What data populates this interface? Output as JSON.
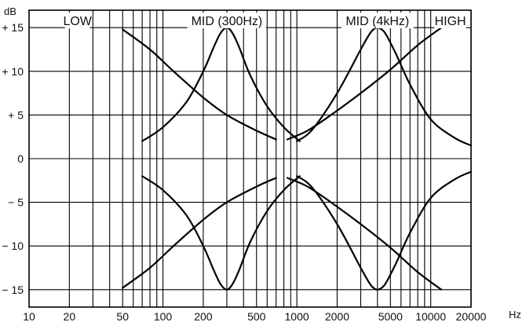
{
  "chart_data": {
    "type": "line",
    "x_scale": "log",
    "xlim": [
      10,
      20000
    ],
    "ylim": [
      -17,
      17
    ],
    "grid": true,
    "x_unit": "Hz",
    "y_unit": "dB",
    "x_ticks": [
      {
        "value": 10,
        "label": "10"
      },
      {
        "value": 20,
        "label": "20"
      },
      {
        "value": 50,
        "label": "50"
      },
      {
        "value": 100,
        "label": "100"
      },
      {
        "value": 200,
        "label": "200"
      },
      {
        "value": 500,
        "label": "500"
      },
      {
        "value": 1000,
        "label": "1000"
      },
      {
        "value": 2000,
        "label": "2000"
      },
      {
        "value": 5000,
        "label": "5000"
      },
      {
        "value": 10000,
        "label": "10000"
      },
      {
        "value": 20000,
        "label": "20000"
      }
    ],
    "y_ticks": [
      {
        "value": 15,
        "label": "+ 15"
      },
      {
        "value": 10,
        "label": "+ 10"
      },
      {
        "value": 5,
        "label": "+ 5"
      },
      {
        "value": 0,
        "label": "0"
      },
      {
        "value": -5,
        "label": "− 5"
      },
      {
        "value": -10,
        "label": "− 10"
      },
      {
        "value": -15,
        "label": "− 15"
      }
    ],
    "bands": [
      {
        "label": "LOW",
        "x": 23
      },
      {
        "label": "MID (300Hz)",
        "x": 300
      },
      {
        "label": "MID (4kHz)",
        "x": 4000
      },
      {
        "label": "HIGH",
        "x": 14000
      }
    ],
    "series": [
      {
        "x": [
          50,
          80,
          120,
          200,
          300,
          500,
          700
        ],
        "y": [
          14.8,
          12.5,
          10,
          7,
          5,
          3.2,
          2.2
        ]
      },
      {
        "x": [
          50,
          80,
          120,
          200,
          300,
          500,
          700
        ],
        "y": [
          -14.8,
          -12.5,
          -10,
          -7,
          -5,
          -3.2,
          -2.2
        ]
      },
      {
        "x": [
          70,
          100,
          150,
          200,
          240,
          270,
          300,
          330,
          370,
          450,
          600,
          800,
          1050
        ],
        "y": [
          2,
          3.6,
          6.5,
          10,
          12.8,
          14.4,
          15,
          14.4,
          12.8,
          9.5,
          6,
          3.6,
          2
        ]
      },
      {
        "x": [
          70,
          100,
          150,
          200,
          240,
          270,
          300,
          330,
          370,
          450,
          600,
          800,
          1050
        ],
        "y": [
          -2,
          -3.6,
          -6.5,
          -10,
          -12.8,
          -14.4,
          -15,
          -14.4,
          -12.8,
          -9.5,
          -6,
          -3.6,
          -2
        ]
      },
      {
        "x": [
          1000,
          1300,
          2000,
          3000,
          3500,
          3800,
          4000,
          4200,
          4600,
          5500,
          7000,
          10000,
          15000,
          20000
        ],
        "y": [
          2,
          3.3,
          7.5,
          12.5,
          14.3,
          14.9,
          15,
          14.9,
          14.3,
          12,
          8.5,
          4.5,
          2.4,
          1.5
        ]
      },
      {
        "x": [
          1000,
          1300,
          2000,
          3000,
          3500,
          3800,
          4000,
          4200,
          4600,
          5500,
          7000,
          10000,
          15000,
          20000
        ],
        "y": [
          -2,
          -3.3,
          -7.5,
          -12.5,
          -14.3,
          -14.9,
          -15,
          -14.9,
          -14.3,
          -12,
          -8.5,
          -4.5,
          -2.4,
          -1.5
        ]
      },
      {
        "x": [
          850,
          1200,
          1800,
          3000,
          5000,
          8000,
          12000
        ],
        "y": [
          2.2,
          3.2,
          5,
          7.5,
          10.2,
          13,
          15
        ]
      },
      {
        "x": [
          850,
          1200,
          1800,
          3000,
          5000,
          8000,
          12000
        ],
        "y": [
          -2.2,
          -3.2,
          -5,
          -7.5,
          -10.2,
          -13,
          -15
        ]
      }
    ]
  }
}
